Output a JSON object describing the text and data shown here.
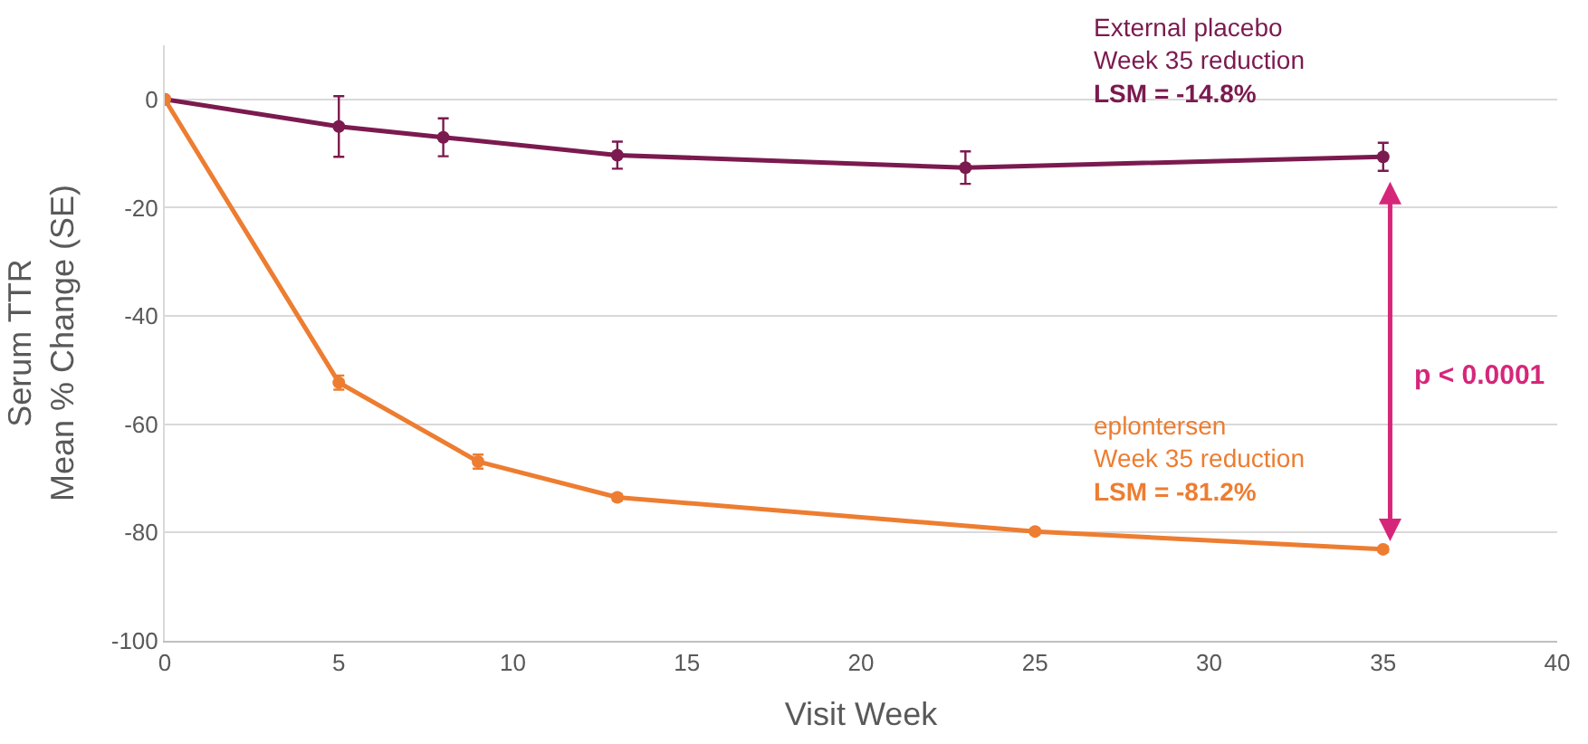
{
  "chart_data": {
    "type": "line",
    "xlabel": "Visit Week",
    "ylabel": "Serum TTR\nMean % Change (SE)",
    "xlim": [
      0,
      40
    ],
    "xticks": [
      0,
      5,
      10,
      15,
      20,
      25,
      30,
      35,
      40
    ],
    "ylim": [
      -100,
      10
    ],
    "yticks": [
      -100,
      -80,
      -60,
      -40,
      -20,
      0
    ],
    "grid": "y",
    "legend": false,
    "marker": "circle",
    "line_style": "solid",
    "series": [
      {
        "name": "External placebo",
        "color": "#7b1a4f",
        "x": [
          0,
          5,
          8,
          13,
          23,
          35
        ],
        "values": [
          0,
          -5,
          -7,
          -10.3,
          -12.6,
          -10.6
        ],
        "errors": [
          null,
          5.6,
          3.5,
          2.5,
          3,
          2.6
        ]
      },
      {
        "name": "eplontersen",
        "color": "#ed7d31",
        "x": [
          0,
          5,
          9,
          13,
          25,
          35
        ],
        "values": [
          0,
          -52.3,
          -66.9,
          -73.5,
          -79.8,
          -83.1
        ],
        "errors": [
          null,
          1.3,
          1.3,
          0.6,
          0.5,
          0.5
        ]
      }
    ],
    "annotations": [
      "Week 35 reduction",
      "LSM = -14.8%",
      "Week 35 reduction",
      "LSM = -81.2%",
      "p < 0.0001"
    ]
  }
}
